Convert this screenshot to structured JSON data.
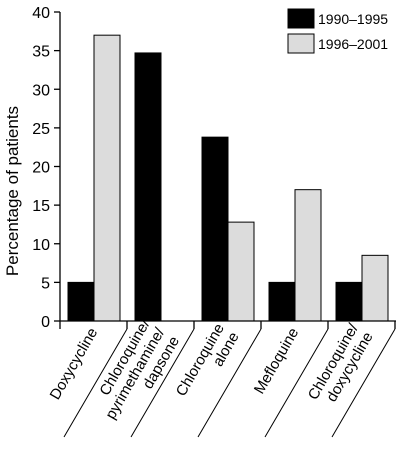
{
  "chart_data": {
    "type": "bar",
    "ylabel": "Percentage of patients",
    "ylim": [
      0,
      40
    ],
    "yticks": [
      0,
      5,
      10,
      15,
      20,
      25,
      30,
      35,
      40
    ],
    "legend_position": "top-right",
    "categories": [
      [
        "Doxycycline"
      ],
      [
        "Chloroquine/",
        "pyrimethamine/",
        "dapsone"
      ],
      [
        "Chloroquine",
        "alone"
      ],
      [
        "Mefloquine"
      ],
      [
        "Chloroquine/",
        "doxycycline"
      ]
    ],
    "series": [
      {
        "name": "1990–1995",
        "color": "#000000",
        "values": [
          5,
          34.7,
          23.8,
          5,
          5
        ]
      },
      {
        "name": "1996–2001",
        "color": "#dcdcdc",
        "values": [
          37,
          0,
          12.8,
          17,
          8.5
        ]
      }
    ]
  }
}
